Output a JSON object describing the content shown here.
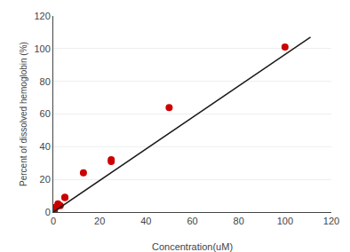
{
  "chart_data": {
    "type": "scatter",
    "xlabel": "Concentration(uM)",
    "ylabel": "Percent of dissolved hemoglobin (%)",
    "series": [
      {
        "type": "scatter",
        "marker": "circle",
        "color": "#cc0000",
        "x": [
          0.5,
          1,
          2,
          3,
          5,
          5,
          13,
          25,
          25,
          50,
          100
        ],
        "values": [
          0,
          3,
          5,
          4,
          9,
          9,
          24,
          31,
          32,
          64,
          101
        ]
      },
      {
        "type": "line",
        "line_style": "solid",
        "color": "#1a1a1a",
        "x": [
          0,
          111
        ],
        "values": [
          0,
          107.004
        ]
      }
    ],
    "xlim": [
      0,
      120
    ],
    "ylim": [
      0,
      120
    ],
    "xticks": [
      0,
      20,
      40,
      60,
      80,
      100,
      120
    ],
    "yticks": [
      0,
      20,
      40,
      60,
      80,
      100,
      120
    ],
    "grid": "y"
  }
}
